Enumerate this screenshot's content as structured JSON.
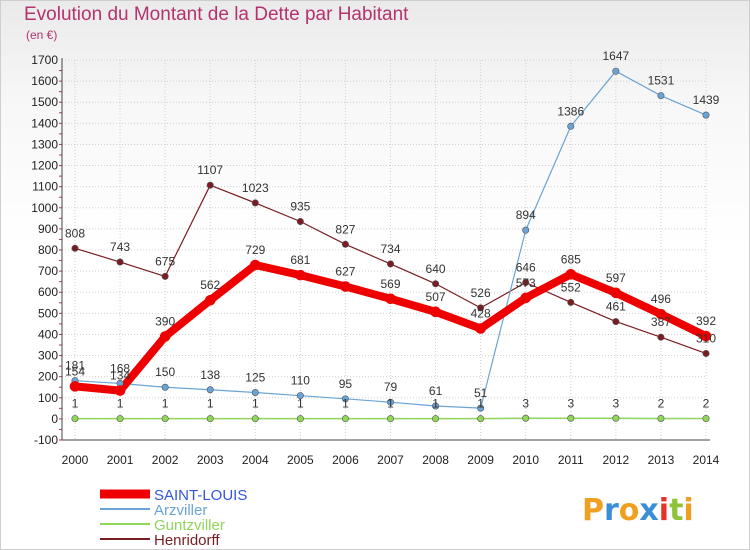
{
  "title": "Evolution du Montant de la Dette par Habitant",
  "unit_label": "(en €)",
  "logo_text": "Proxiti",
  "chart_data": {
    "type": "line",
    "x": [
      "2000",
      "2001",
      "2002",
      "2003",
      "2004",
      "2005",
      "2006",
      "2007",
      "2008",
      "2009",
      "2010",
      "2011",
      "2012",
      "2013",
      "2014"
    ],
    "ylim": [
      -100,
      1700
    ],
    "yticks": [
      -100,
      0,
      100,
      200,
      300,
      400,
      500,
      600,
      700,
      800,
      900,
      1000,
      1100,
      1200,
      1300,
      1400,
      1500,
      1600,
      1700
    ],
    "grid": true,
    "legend_position": "bottom-left",
    "series": [
      {
        "name": "Henridorff",
        "color": "#7a1d22",
        "width": 1.2,
        "values": [
          808,
          743,
          675,
          1107,
          1023,
          935,
          827,
          734,
          640,
          526,
          646,
          552,
          461,
          387,
          310
        ]
      },
      {
        "name": "Arzviller",
        "color": "#6aa4d6",
        "width": 1.2,
        "values": [
          181,
          168,
          150,
          138,
          125,
          110,
          95,
          79,
          61,
          51,
          894,
          1386,
          1647,
          1531,
          1439
        ]
      },
      {
        "name": "Guntzviller",
        "color": "#8fd65a",
        "width": 1.5,
        "values": [
          1,
          1,
          1,
          1,
          1,
          1,
          1,
          1,
          1,
          1,
          3,
          3,
          3,
          2,
          2
        ]
      },
      {
        "name": "SAINT-LOUIS",
        "color": "#ee0000",
        "width": 8,
        "values": [
          154,
          134,
          390,
          562,
          729,
          681,
          627,
          569,
          507,
          428,
          573,
          685,
          597,
          496,
          392
        ]
      }
    ]
  },
  "legend_order": [
    "SAINT-LOUIS",
    "Arzviller",
    "Guntzviller",
    "Henridorff"
  ]
}
